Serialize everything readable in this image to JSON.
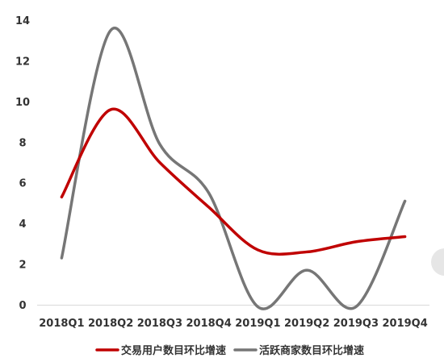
{
  "chart_data": {
    "type": "line",
    "title": "",
    "xlabel": "",
    "ylabel": "",
    "categories": [
      "2018Q1",
      "2018Q2",
      "2018Q3",
      "2018Q4",
      "2019Q1",
      "2019Q2",
      "2019Q3",
      "2019Q4"
    ],
    "ylim": [
      0,
      14
    ],
    "yticks": [
      0,
      2,
      4,
      6,
      8,
      10,
      12,
      14
    ],
    "grid": false,
    "legend_position": "bottom",
    "smooth": true,
    "series": [
      {
        "name": "交易用户数目环比增速",
        "color": "#c00000",
        "values": [
          5.3,
          9.6,
          7.0,
          4.8,
          2.7,
          2.6,
          3.1,
          3.35
        ]
      },
      {
        "name": "活跃商家数目环比增速",
        "color": "#767676",
        "values": [
          2.3,
          13.5,
          7.9,
          5.5,
          -0.1,
          1.7,
          -0.1,
          5.1
        ]
      }
    ]
  }
}
